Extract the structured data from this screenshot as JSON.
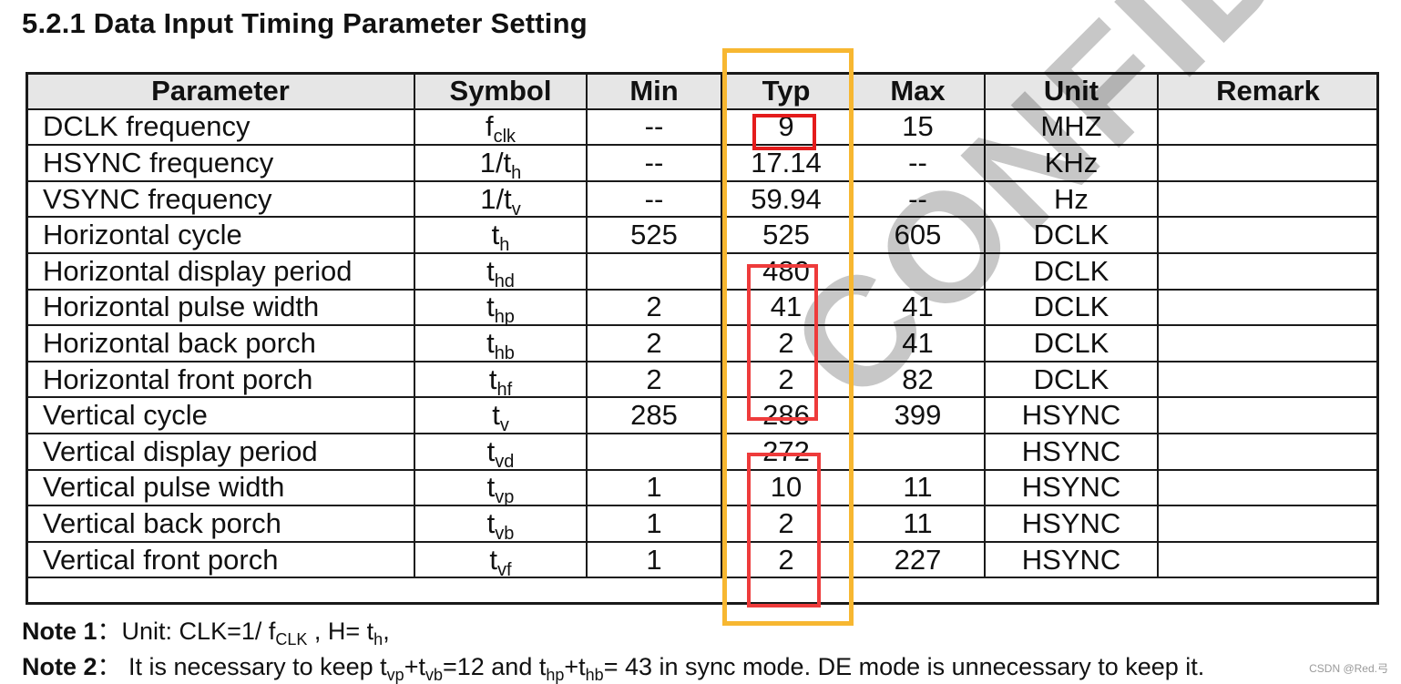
{
  "title": "5.2.1 Data Input Timing Parameter Setting",
  "table": {
    "headers": [
      "Parameter",
      "Symbol",
      "Min",
      "Typ",
      "Max",
      "Unit",
      "Remark"
    ],
    "rows": [
      {
        "parameter": "DCLK frequency",
        "sym_base": "f",
        "sym_sub": "clk",
        "min": "--",
        "typ": "9",
        "max": "15",
        "unit": "MHZ",
        "remark": ""
      },
      {
        "parameter": "HSYNC frequency",
        "sym_base": "1/t",
        "sym_sub": "h",
        "min": "--",
        "typ": "17.14",
        "max": "--",
        "unit": "KHz",
        "remark": ""
      },
      {
        "parameter": "VSYNC frequency",
        "sym_base": "1/t",
        "sym_sub": "v",
        "min": "--",
        "typ": "59.94",
        "max": "--",
        "unit": "Hz",
        "remark": ""
      },
      {
        "parameter": "Horizontal cycle",
        "sym_base": "t",
        "sym_sub": "h",
        "min": "525",
        "typ": "525",
        "max": "605",
        "unit": "DCLK",
        "remark": ""
      },
      {
        "parameter": "Horizontal display period",
        "sym_base": "t",
        "sym_sub": "hd",
        "min": "",
        "typ": "480",
        "max": "",
        "unit": "DCLK",
        "remark": ""
      },
      {
        "parameter": "Horizontal pulse width",
        "sym_base": "t",
        "sym_sub": "hp",
        "min": "2",
        "typ": "41",
        "max": "41",
        "unit": "DCLK",
        "remark": ""
      },
      {
        "parameter": "Horizontal back porch",
        "sym_base": "t",
        "sym_sub": "hb",
        "min": "2",
        "typ": "2",
        "max": "41",
        "unit": "DCLK",
        "remark": ""
      },
      {
        "parameter": "Horizontal front porch",
        "sym_base": "t",
        "sym_sub": "hf",
        "min": "2",
        "typ": "2",
        "max": "82",
        "unit": "DCLK",
        "remark": ""
      },
      {
        "parameter": "Vertical cycle",
        "sym_base": "t",
        "sym_sub": "v",
        "min": "285",
        "typ": "286",
        "max": "399",
        "unit": "HSYNC",
        "remark": ""
      },
      {
        "parameter": "Vertical display period",
        "sym_base": "t",
        "sym_sub": "vd",
        "min": "",
        "typ": "272",
        "max": "",
        "unit": "HSYNC",
        "remark": ""
      },
      {
        "parameter": "Vertical pulse width",
        "sym_base": "t",
        "sym_sub": "vp",
        "min": "1",
        "typ": "10",
        "max": "11",
        "unit": "HSYNC",
        "remark": ""
      },
      {
        "parameter": "Vertical back porch",
        "sym_base": "t",
        "sym_sub": "vb",
        "min": "1",
        "typ": "2",
        "max": "11",
        "unit": "HSYNC",
        "remark": ""
      },
      {
        "parameter": "Vertical front porch",
        "sym_base": "t",
        "sym_sub": "vf",
        "min": "1",
        "typ": "2",
        "max": "227",
        "unit": "HSYNC",
        "remark": ""
      }
    ]
  },
  "notes": {
    "note1_label": "Note 1",
    "note1_sep": "：",
    "note1_a": "Unit: CLK=1/ f",
    "note1_a_sub": "CLK",
    "note1_b": " , H= t",
    "note1_b_sub": "h",
    "note1_c": ",",
    "note2_label": "Note 2",
    "note2_sep": "：",
    "note2_a": " It is necessary to keep t",
    "note2_a_sub": "vp",
    "note2_b": "+t",
    "note2_b_sub": "vb",
    "note2_c": "=12 and t",
    "note2_c_sub": "hp",
    "note2_d": "+t",
    "note2_d_sub": "hb",
    "note2_e": "= 43 in sync mode. DE mode is unnecessary to keep it."
  },
  "watermark": "CONFIDENTIAL",
  "credit": "CSDN @Red.弓",
  "colors": {
    "typ_column_highlight": "#f7b731",
    "value_highlight": "#ee3b3b",
    "header_background": "#e6e6e6"
  }
}
